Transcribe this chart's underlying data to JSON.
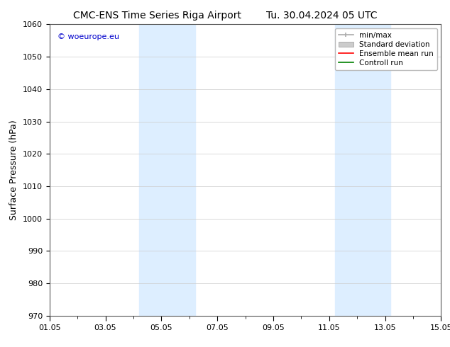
{
  "title_left": "CMC-ENS Time Series Riga Airport",
  "title_right": "Tu. 30.04.2024 05 UTC",
  "ylabel": "Surface Pressure (hPa)",
  "ylim": [
    970,
    1060
  ],
  "yticks": [
    970,
    980,
    990,
    1000,
    1010,
    1020,
    1030,
    1040,
    1050,
    1060
  ],
  "x_start_days": 0,
  "x_end_days": 14,
  "xtick_labels": [
    "01.05",
    "03.05",
    "05.05",
    "07.05",
    "09.05",
    "11.05",
    "13.05",
    "15.05"
  ],
  "xtick_positions_days": [
    0,
    2,
    4,
    6,
    8,
    10,
    12,
    14
  ],
  "shaded_regions": [
    {
      "x_start_days": 3.2,
      "x_end_days": 5.2
    },
    {
      "x_start_days": 10.2,
      "x_end_days": 12.2
    }
  ],
  "shaded_color": "#ddeeff",
  "background_color": "#ffffff",
  "watermark_text": "© woeurope.eu",
  "watermark_color": "#0000cc",
  "legend_items": [
    {
      "label": "min/max",
      "color": "#aaaaaa",
      "style": "line_with_caps"
    },
    {
      "label": "Standard deviation",
      "color": "#cccccc",
      "style": "bar"
    },
    {
      "label": "Ensemble mean run",
      "color": "#ff0000",
      "style": "line"
    },
    {
      "label": "Controll run",
      "color": "#008000",
      "style": "line"
    }
  ],
  "grid_color": "#cccccc",
  "tick_fontsize": 8,
  "label_fontsize": 9,
  "title_fontsize": 10,
  "watermark_fontsize": 8,
  "legend_fontsize": 7.5
}
